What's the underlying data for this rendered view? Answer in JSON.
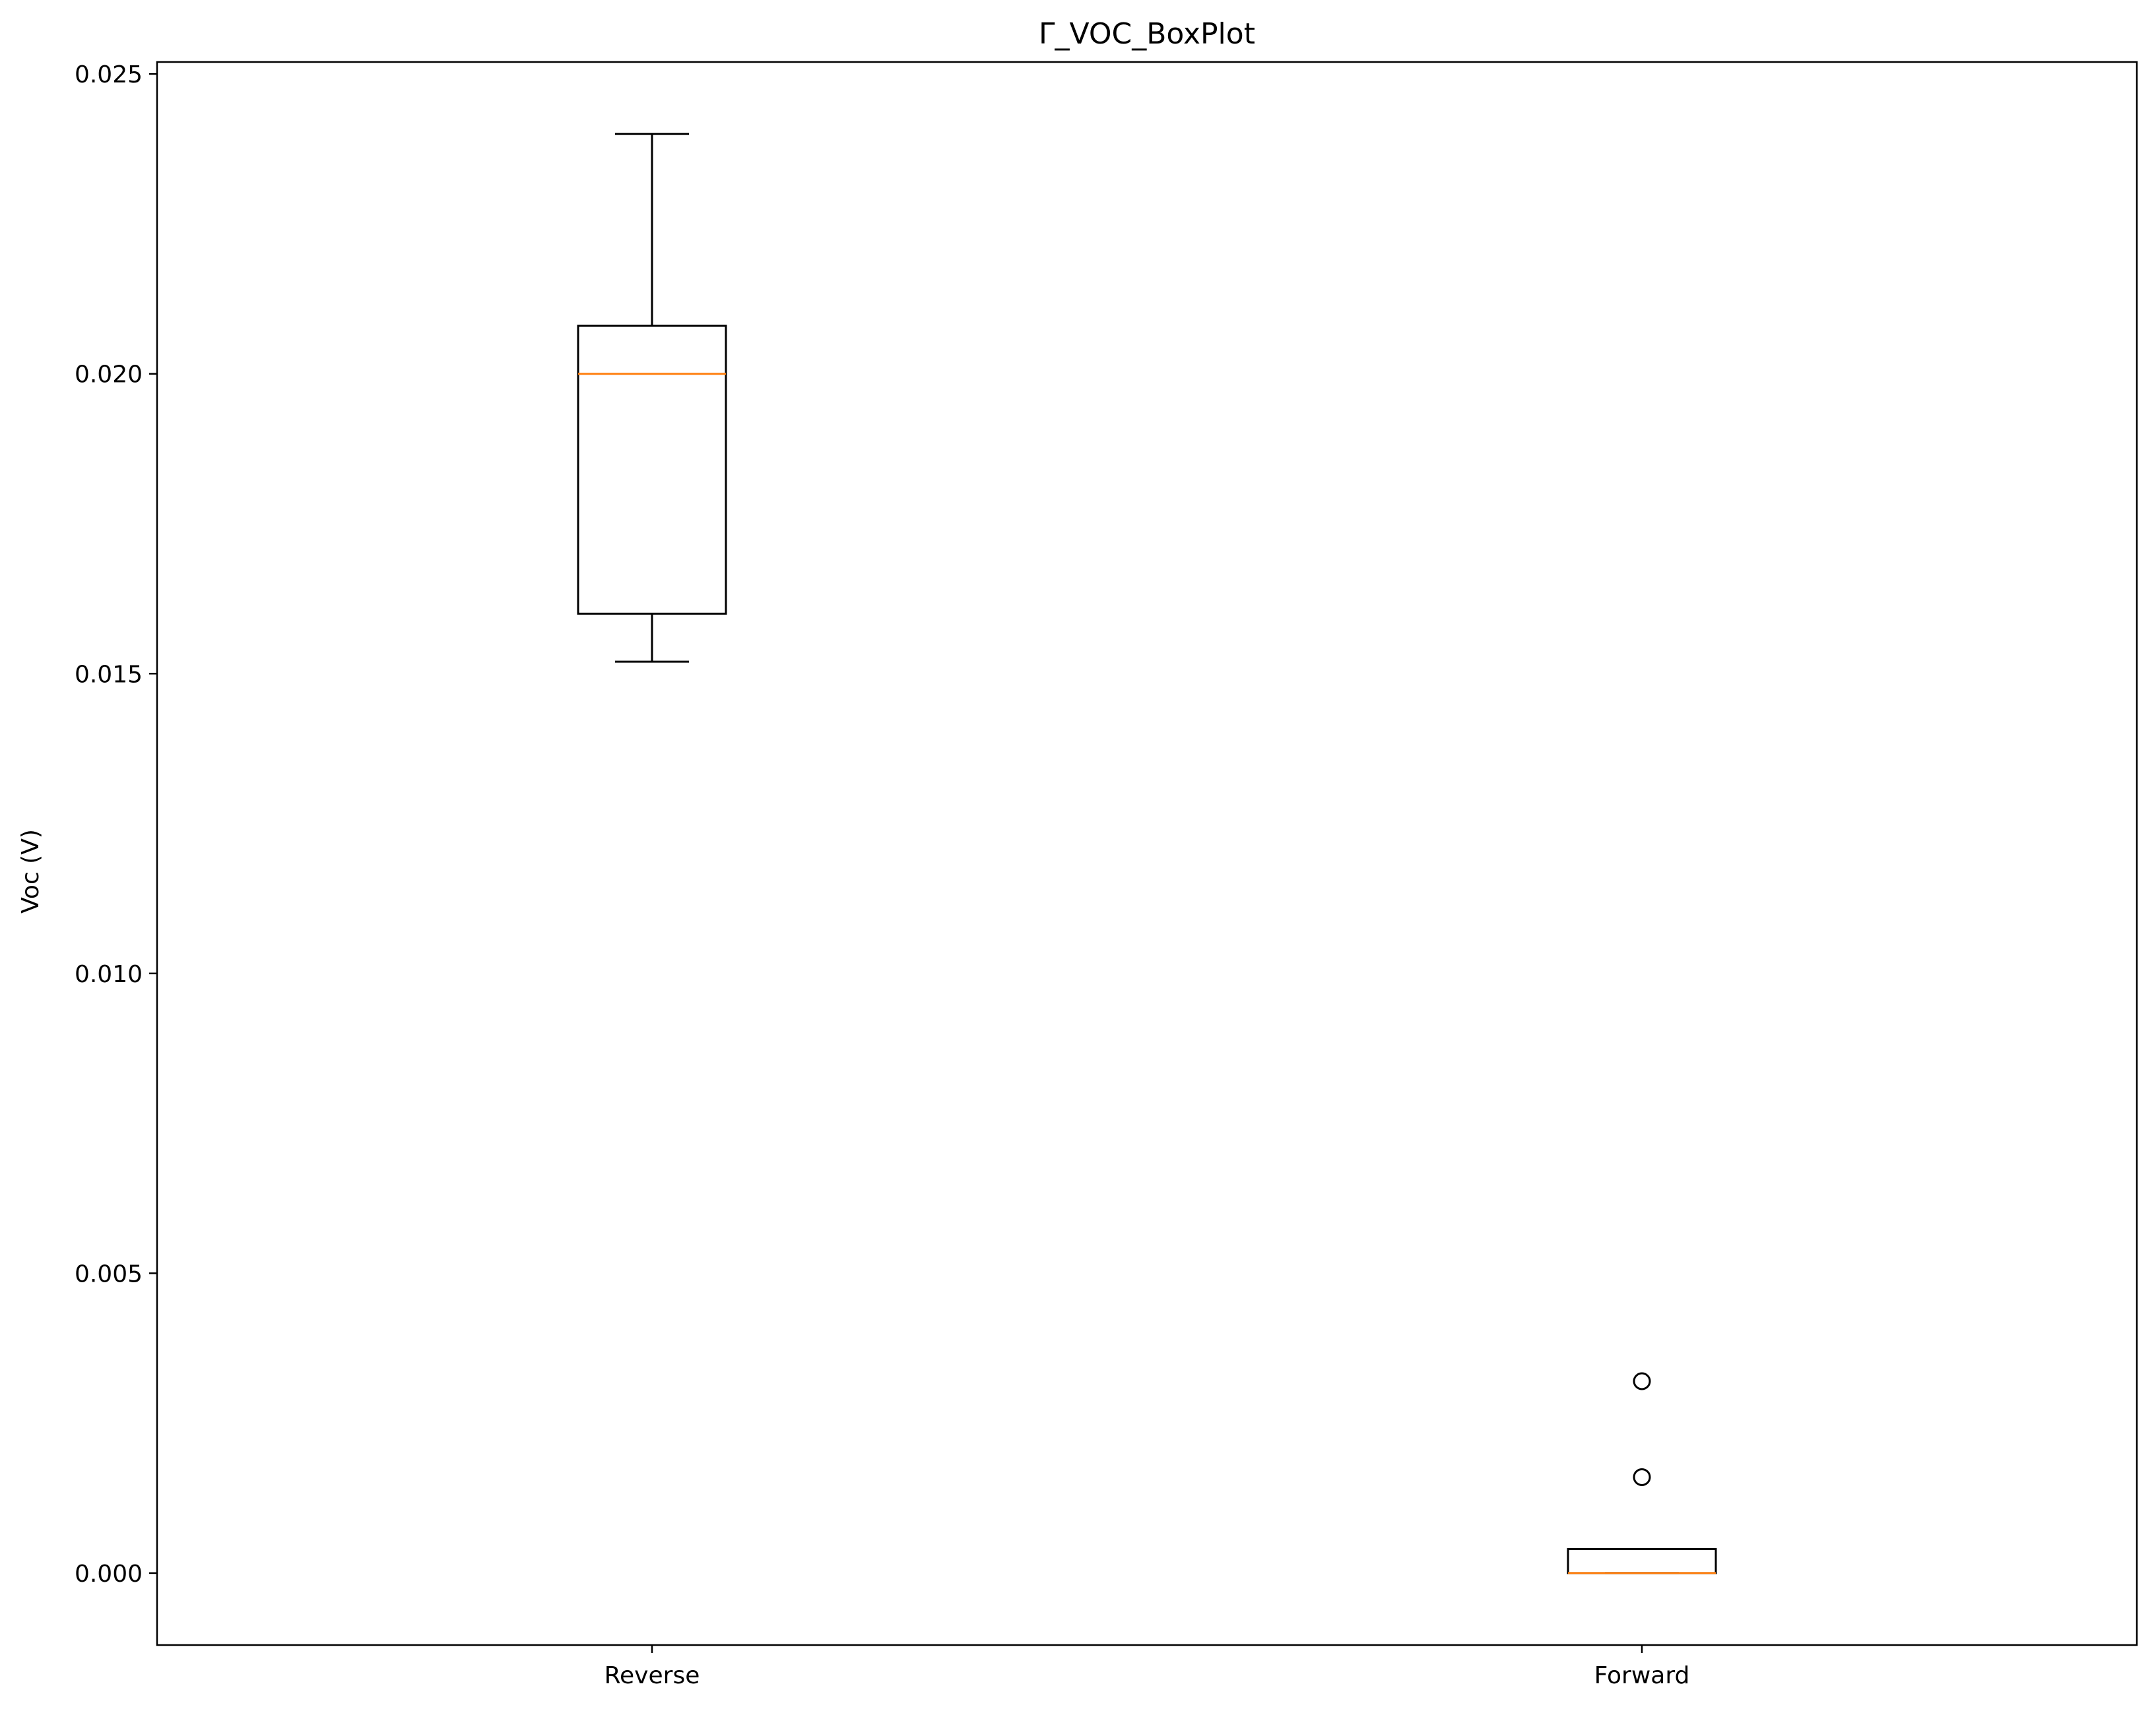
{
  "chart_data": {
    "type": "boxplot",
    "title": "Γ_VOC_BoxPlot",
    "xlabel": "",
    "ylabel": "Voc (V)",
    "ylim": [
      -0.0012,
      0.0252
    ],
    "yticks": [
      0.0,
      0.005,
      0.01,
      0.015,
      0.02,
      0.025
    ],
    "ytick_labels": [
      "0.000",
      "0.005",
      "0.010",
      "0.015",
      "0.020",
      "0.025"
    ],
    "grid": false,
    "categories": [
      "Reverse",
      "Forward"
    ],
    "boxes": [
      {
        "name": "Reverse",
        "whisker_low": 0.0152,
        "q1": 0.016,
        "median": 0.02,
        "q3": 0.0208,
        "whisker_high": 0.024,
        "outliers": []
      },
      {
        "name": "Forward",
        "whisker_low": 0.0,
        "q1": 0.0,
        "median": 0.0,
        "q3": 0.0004,
        "whisker_high": 0.0004,
        "outliers": [
          0.0016,
          0.0032
        ]
      }
    ],
    "colors": {
      "box": "#000000",
      "median": "#ff7f0e",
      "outlier": "#000000"
    }
  }
}
